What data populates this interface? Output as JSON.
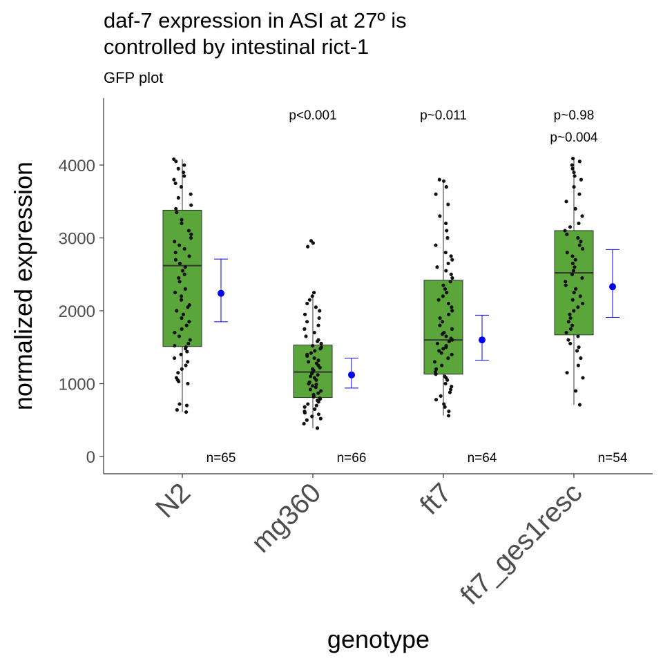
{
  "chart_data": {
    "type": "box",
    "title_lines": [
      "daf-7 expression in ASI at 27º is",
      "controlled by intestinal rict-1"
    ],
    "subtitle": "GFP plot",
    "xlabel": "genotype",
    "ylabel": "normalized expression",
    "ylim": [
      -230,
      4930
    ],
    "yticks": [
      0,
      1000,
      2000,
      3000,
      4000
    ],
    "categories": [
      "N2",
      "mg360",
      "ft7",
      "ft7_ges1resc"
    ],
    "box_color": "#5aa63a",
    "mean_color": "#0000ee",
    "point_color": "#111111",
    "series": [
      {
        "category": "N2",
        "box": {
          "q1": 1510,
          "median": 2620,
          "q3": 3380,
          "whisker_low": 610,
          "whisker_high": 4080
        },
        "mean": 2240,
        "ci_low": 1850,
        "ci_high": 2710,
        "n_label": "n=65",
        "points": [
          610,
          640,
          700,
          720,
          1000,
          1030,
          1050,
          1080,
          1150,
          1200,
          1250,
          1300,
          1350,
          1400,
          1440,
          1480,
          1500,
          1520,
          1550,
          1600,
          1650,
          1700,
          1750,
          1800,
          1850,
          1900,
          1950,
          2000,
          2050,
          2080,
          2150,
          2200,
          2250,
          2300,
          2400,
          2450,
          2500,
          2550,
          2600,
          2650,
          2700,
          2750,
          2800,
          2850,
          2900,
          2950,
          3000,
          3050,
          3100,
          3200,
          3250,
          3350,
          3400,
          3450,
          3550,
          3600,
          3700,
          3750,
          3800,
          3850,
          3900,
          3950,
          4000,
          4050,
          4080
        ]
      },
      {
        "category": "mg360",
        "box": {
          "q1": 810,
          "median": 1160,
          "q3": 1530,
          "whisker_low": 390,
          "whisker_high": 2250
        },
        "mean": 1120,
        "ci_low": 940,
        "ci_high": 1350,
        "n_label": "n=66",
        "points": [
          390,
          450,
          500,
          520,
          550,
          580,
          600,
          620,
          650,
          680,
          700,
          720,
          750,
          770,
          790,
          800,
          820,
          850,
          870,
          900,
          920,
          950,
          970,
          990,
          1000,
          1020,
          1050,
          1080,
          1100,
          1120,
          1140,
          1160,
          1180,
          1200,
          1220,
          1250,
          1280,
          1300,
          1320,
          1350,
          1380,
          1400,
          1420,
          1450,
          1480,
          1500,
          1520,
          1550,
          1580,
          1600,
          1650,
          1700,
          1750,
          1800,
          1850,
          1900,
          1950,
          2000,
          2050,
          2100,
          2150,
          2200,
          2250,
          2880,
          2930,
          2960
        ]
      },
      {
        "category": "ft7",
        "box": {
          "q1": 1130,
          "median": 1600,
          "q3": 2420,
          "whisker_low": 560,
          "whisker_high": 3800
        },
        "mean": 1600,
        "ci_low": 1320,
        "ci_high": 1940,
        "n_label": "n=64",
        "points": [
          560,
          620,
          680,
          720,
          780,
          830,
          880,
          920,
          960,
          1000,
          1050,
          1080,
          1100,
          1130,
          1160,
          1200,
          1250,
          1300,
          1350,
          1400,
          1420,
          1450,
          1480,
          1500,
          1520,
          1550,
          1580,
          1600,
          1620,
          1650,
          1680,
          1700,
          1750,
          1800,
          1850,
          1900,
          1950,
          2000,
          2050,
          2100,
          2150,
          2200,
          2250,
          2300,
          2350,
          2400,
          2450,
          2500,
          2550,
          2600,
          2650,
          2700,
          2750,
          2800,
          2900,
          3000,
          3100,
          3200,
          3300,
          3460,
          3600,
          3700,
          3780,
          3800
        ]
      },
      {
        "category": "ft7_ges1resc",
        "box": {
          "q1": 1670,
          "median": 2520,
          "q3": 3100,
          "whisker_low": 710,
          "whisker_high": 4090
        },
        "mean": 2330,
        "ci_low": 1910,
        "ci_high": 2840,
        "n_label": "n=54",
        "points": [
          710,
          900,
          1080,
          1150,
          1250,
          1350,
          1450,
          1500,
          1550,
          1600,
          1650,
          1700,
          1750,
          1800,
          1850,
          1900,
          1950,
          2000,
          2050,
          2100,
          2150,
          2200,
          2250,
          2300,
          2350,
          2400,
          2450,
          2500,
          2550,
          2600,
          2650,
          2700,
          2750,
          2800,
          2850,
          2900,
          2950,
          3000,
          3050,
          3100,
          3150,
          3200,
          3300,
          3400,
          3500,
          3600,
          3700,
          3800,
          3850,
          3900,
          3950,
          4000,
          4050,
          4090
        ]
      }
    ],
    "pvalue_labels": [
      {
        "category": "mg360",
        "text": "p<0.001",
        "color": "#000000"
      },
      {
        "category": "ft7",
        "text": "p~0.011",
        "color": "#000000"
      },
      {
        "category": "ft7_ges1resc",
        "text": "p~0.98",
        "color": "#000000"
      },
      {
        "category": "ft7_ges1resc",
        "text": "p~0.004",
        "color": "#ff0000"
      }
    ]
  }
}
